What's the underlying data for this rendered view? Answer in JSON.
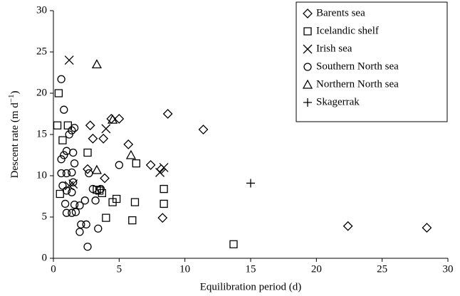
{
  "chart_data": {
    "type": "scatter",
    "x_label": "Equilibration period (d)",
    "y_label": {
      "main": "Descent rate  (m d",
      "sup": "−1",
      "end": ")"
    },
    "xlim": [
      0,
      30
    ],
    "xticks": [
      0,
      5,
      10,
      15,
      20,
      25,
      30
    ],
    "ylim": [
      0,
      30
    ],
    "yticks": [
      0,
      5,
      10,
      15,
      20,
      25,
      30
    ],
    "grid": false,
    "legend": "upper right",
    "series": [
      {
        "name": "Barents sea",
        "marker": "diamond",
        "color": "#000000",
        "x": [
          2.8,
          3.0,
          3.8,
          4.4,
          5.0,
          5.7,
          7.4,
          8.2,
          8.7,
          11.4,
          3.9,
          2.6,
          8.3,
          22.4,
          28.4
        ],
        "y": [
          16.1,
          14.5,
          14.5,
          16.9,
          16.9,
          13.8,
          11.3,
          10.8,
          17.5,
          15.6,
          9.7,
          10.8,
          4.9,
          3.9,
          3.7
        ]
      },
      {
        "name": "Icelandic shelf",
        "marker": "square",
        "color": "#000000",
        "x": [
          0.4,
          0.3,
          1.1,
          0.7,
          2.6,
          6.3,
          0.5,
          3.3,
          3.7,
          3.5,
          4.8,
          4.5,
          6.2,
          8.4,
          8.4,
          4.0,
          6.0,
          13.7
        ],
        "y": [
          20.0,
          16.1,
          16.1,
          14.3,
          12.8,
          11.5,
          7.8,
          8.3,
          7.9,
          8.2,
          7.2,
          6.8,
          6.8,
          8.4,
          6.6,
          4.9,
          4.6,
          1.7
        ]
      },
      {
        "name": "Irish sea",
        "marker": "x",
        "color": "#000000",
        "x": [
          1.2,
          4.0,
          8.4,
          8.1,
          1.2,
          1.5
        ],
        "y": [
          24.0,
          15.7,
          11.0,
          10.4,
          8.8,
          9.0
        ]
      },
      {
        "name": "Southern North sea",
        "marker": "circle",
        "color": "#000000",
        "x": [
          0.6,
          0.8,
          1.2,
          1.4,
          1.6,
          1.0,
          0.8,
          0.6,
          1.5,
          0.6,
          1.0,
          1.4,
          1.6,
          2.7,
          5.0,
          0.7,
          1.0,
          1.4,
          1.5,
          0.9,
          1.6,
          1.0,
          1.4,
          1.7,
          2.0,
          2.1,
          2.5,
          2.0,
          3.0,
          3.2,
          3.4,
          2.6,
          3.6,
          2.4
        ],
        "y": [
          21.7,
          18.0,
          15.0,
          15.5,
          15.8,
          13.0,
          12.5,
          12.0,
          12.8,
          10.3,
          10.3,
          10.4,
          11.5,
          10.3,
          11.3,
          8.8,
          8.2,
          8.0,
          9.2,
          6.6,
          6.5,
          5.5,
          5.5,
          5.6,
          6.4,
          4.1,
          4.1,
          3.2,
          8.4,
          7.0,
          3.6,
          1.4,
          8.4,
          7.0
        ]
      },
      {
        "name": "Northern North sea",
        "marker": "triangle",
        "color": "#000000",
        "x": [
          3.3,
          4.5,
          5.9,
          3.3
        ],
        "y": [
          23.5,
          16.8,
          12.5,
          10.7
        ]
      },
      {
        "name": "Skagerrak",
        "marker": "plus",
        "color": "#000000",
        "x": [
          15.0
        ],
        "y": [
          9.1
        ]
      }
    ]
  }
}
